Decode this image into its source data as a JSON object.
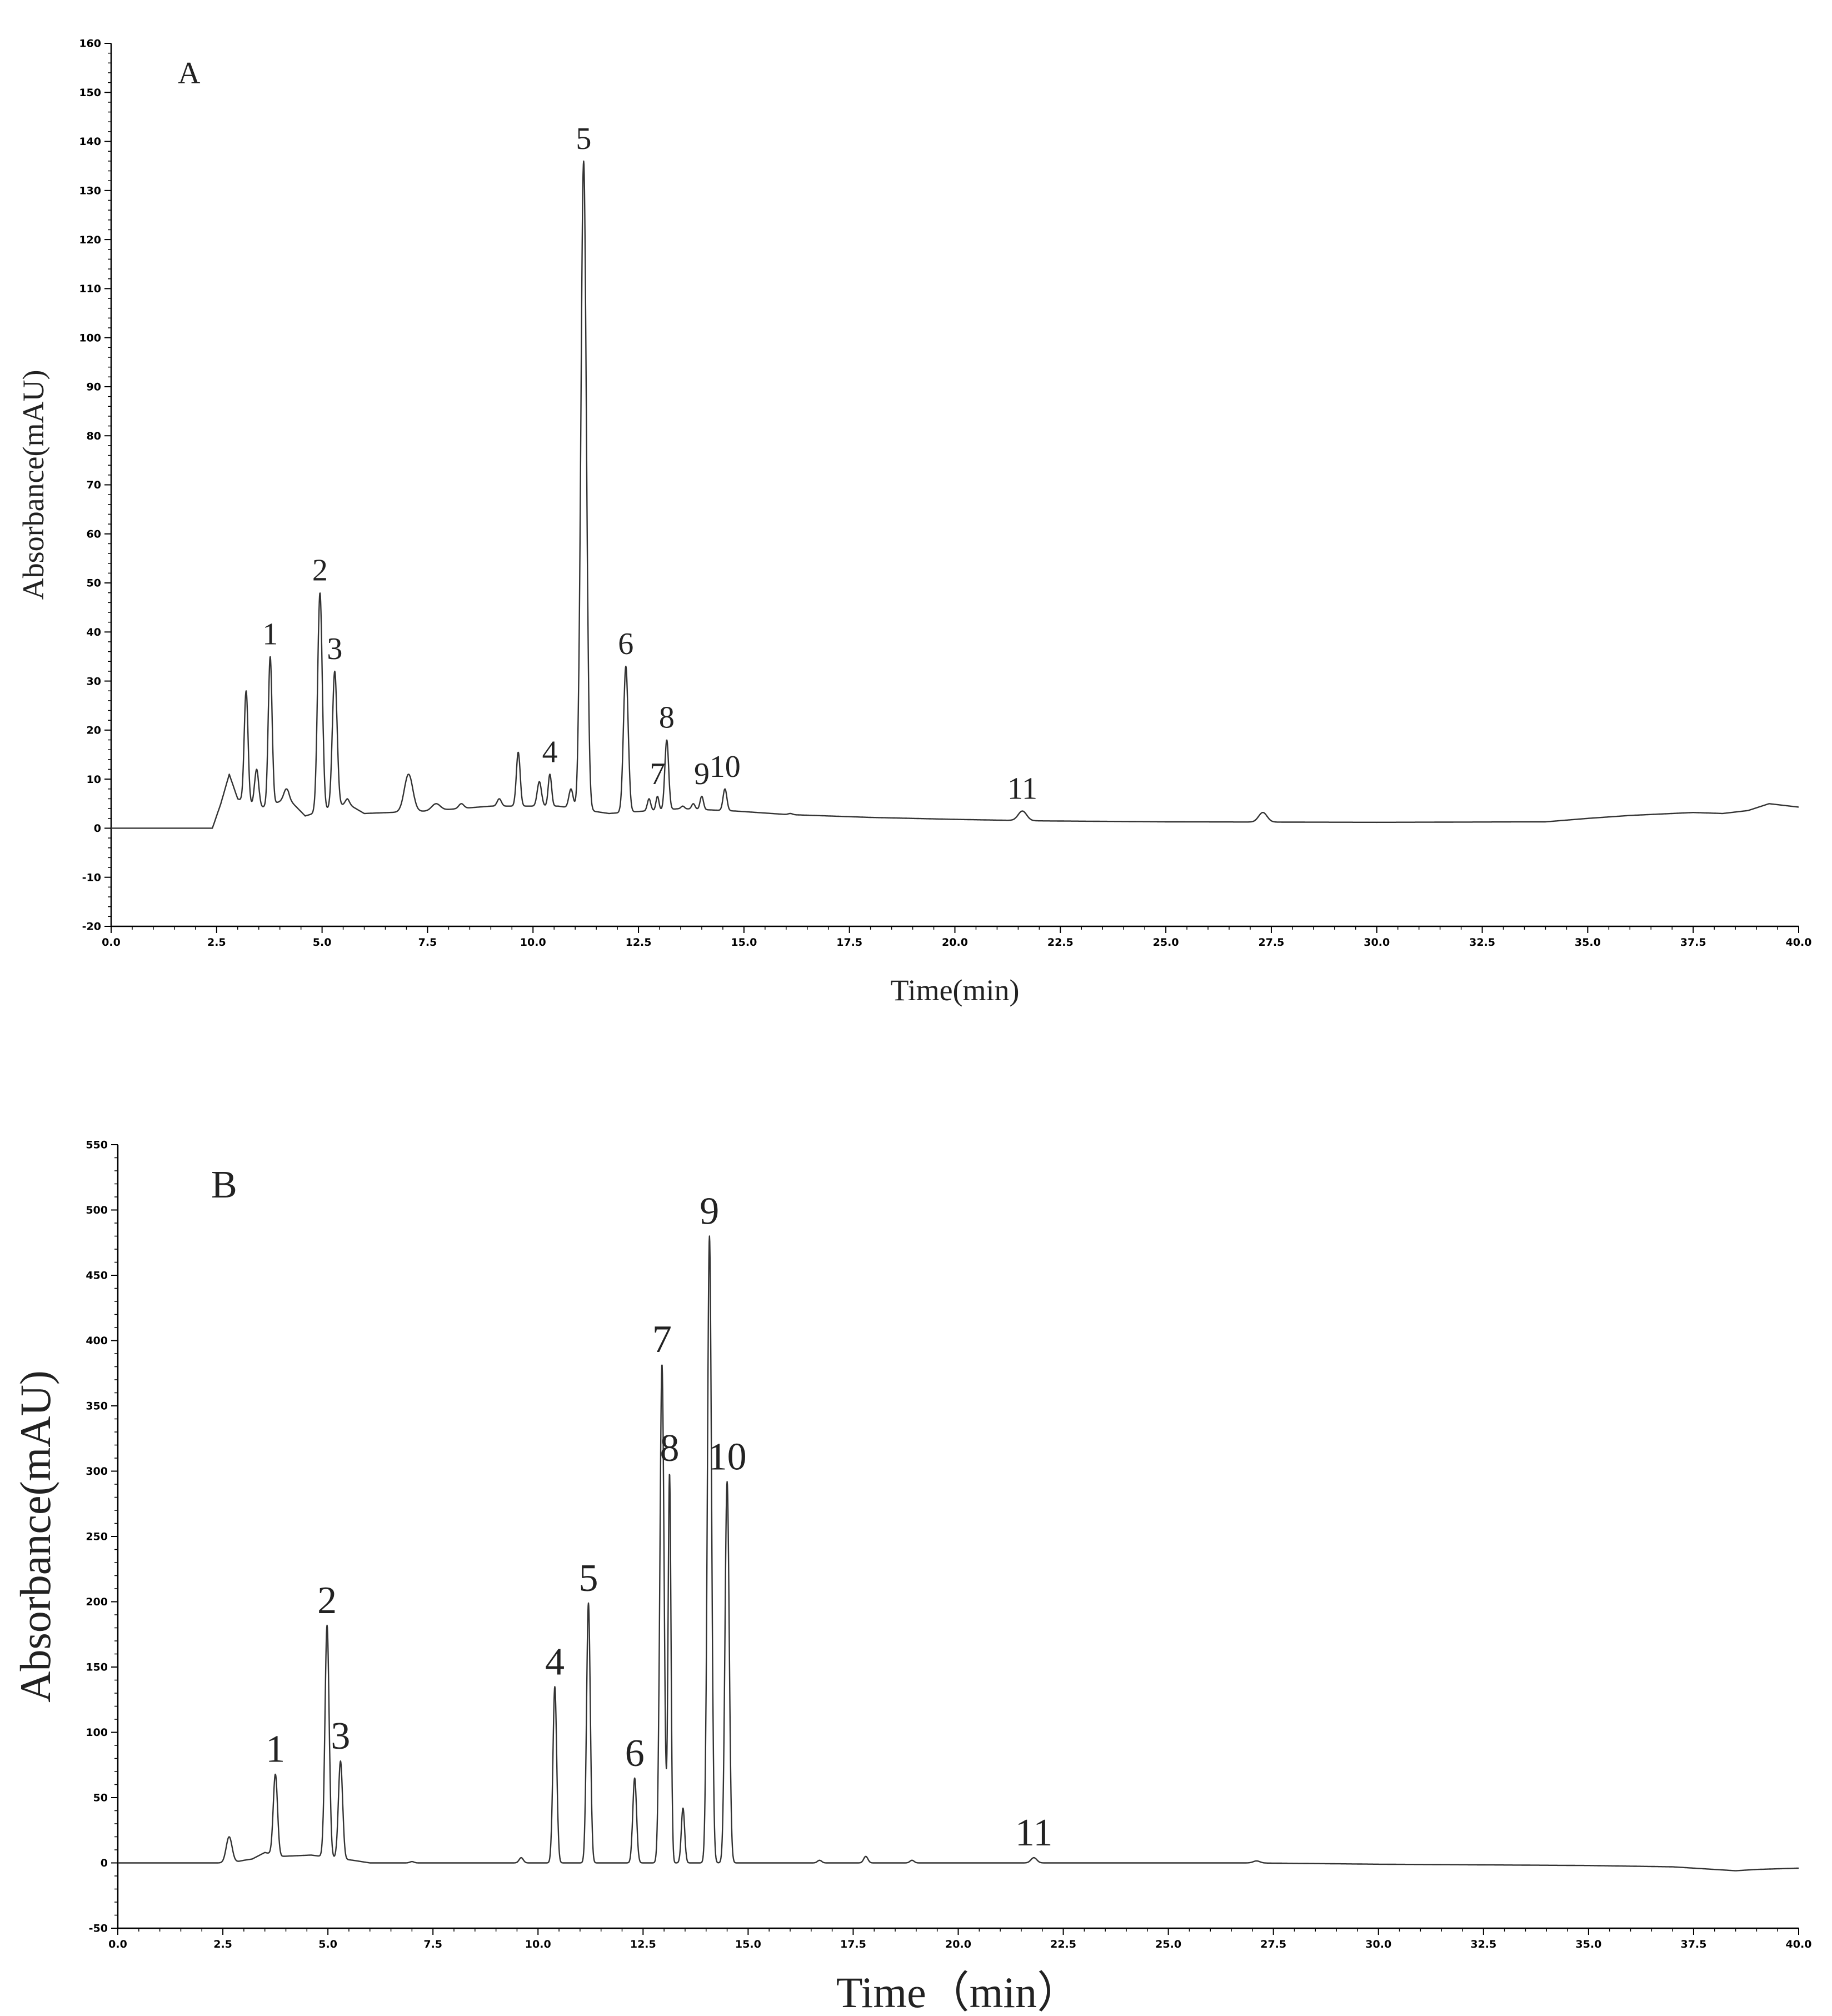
{
  "chart_data": [
    {
      "type": "line",
      "panel_label": "A",
      "xlabel": "Time(min)",
      "ylabel": "Absorbance(mAU)",
      "xlim": [
        0,
        40
      ],
      "ylim": [
        -20,
        160
      ],
      "xticks": [
        "0.0",
        "2.5",
        "5.0",
        "7.5",
        "10.0",
        "12.5",
        "15.0",
        "17.5",
        "20.0",
        "22.5",
        "25.0",
        "27.5",
        "30.0",
        "32.5",
        "35.0",
        "37.5",
        "40.0"
      ],
      "yticks": [
        "-20",
        "-10",
        "0",
        "10",
        "20",
        "30",
        "40",
        "50",
        "60",
        "70",
        "80",
        "90",
        "100",
        "110",
        "120",
        "130",
        "140",
        "150",
        "160"
      ],
      "baseline": [
        [
          0,
          0
        ],
        [
          2.4,
          0
        ],
        [
          2.6,
          5
        ],
        [
          2.8,
          11
        ],
        [
          3.0,
          6
        ],
        [
          3.5,
          4
        ],
        [
          4.2,
          6
        ],
        [
          4.6,
          2.5
        ],
        [
          5.6,
          5
        ],
        [
          6.0,
          3
        ],
        [
          7.5,
          3.5
        ],
        [
          9.0,
          4.5
        ],
        [
          10.6,
          4.5
        ],
        [
          11.8,
          3
        ],
        [
          13.5,
          4
        ],
        [
          14.8,
          3.5
        ],
        [
          16,
          2.8
        ],
        [
          18,
          2.2
        ],
        [
          20,
          1.8
        ],
        [
          22,
          1.5
        ],
        [
          25,
          1.3
        ],
        [
          30,
          1.2
        ],
        [
          34,
          1.3
        ],
        [
          35,
          2
        ],
        [
          36,
          2.6
        ],
        [
          37.5,
          3.2
        ],
        [
          38.2,
          3.0
        ],
        [
          38.8,
          3.6
        ],
        [
          39.3,
          5
        ],
        [
          39.7,
          4.6
        ],
        [
          40,
          4.3
        ]
      ],
      "peaks": [
        {
          "x": 3.2,
          "y": 28,
          "w": 0.045
        },
        {
          "x": 3.45,
          "y": 12,
          "w": 0.05
        },
        {
          "x": 3.77,
          "y": 35,
          "w": 0.045
        },
        {
          "x": 4.15,
          "y": 8,
          "w": 0.06
        },
        {
          "x": 4.95,
          "y": 48,
          "w": 0.055
        },
        {
          "x": 5.3,
          "y": 32,
          "w": 0.055
        },
        {
          "x": 5.6,
          "y": 6,
          "w": 0.05
        },
        {
          "x": 7.05,
          "y": 11,
          "w": 0.1
        },
        {
          "x": 7.7,
          "y": 5,
          "w": 0.1
        },
        {
          "x": 8.3,
          "y": 5,
          "w": 0.06
        },
        {
          "x": 9.2,
          "y": 6,
          "w": 0.05
        },
        {
          "x": 9.65,
          "y": 15.5,
          "w": 0.045
        },
        {
          "x": 10.15,
          "y": 9.5,
          "w": 0.05
        },
        {
          "x": 10.4,
          "y": 11,
          "w": 0.04
        },
        {
          "x": 10.9,
          "y": 8,
          "w": 0.05
        },
        {
          "x": 11.2,
          "y": 136,
          "w": 0.065
        },
        {
          "x": 12.2,
          "y": 33,
          "w": 0.055
        },
        {
          "x": 12.75,
          "y": 6,
          "w": 0.04
        },
        {
          "x": 12.95,
          "y": 6.5,
          "w": 0.035
        },
        {
          "x": 13.17,
          "y": 18,
          "w": 0.045
        },
        {
          "x": 13.55,
          "y": 4.5,
          "w": 0.04
        },
        {
          "x": 13.8,
          "y": 5,
          "w": 0.04
        },
        {
          "x": 14.0,
          "y": 6.5,
          "w": 0.04
        },
        {
          "x": 14.55,
          "y": 8,
          "w": 0.045
        },
        {
          "x": 16.1,
          "y": 3,
          "w": 0.05
        },
        {
          "x": 21.6,
          "y": 3.5,
          "w": 0.1
        },
        {
          "x": 27.3,
          "y": 3.2,
          "w": 0.1
        }
      ],
      "peak_labels": [
        {
          "text": "1",
          "x": 3.77,
          "y": 35
        },
        {
          "text": "2",
          "x": 4.95,
          "y": 48
        },
        {
          "text": "3",
          "x": 5.3,
          "y": 32
        },
        {
          "text": "4",
          "x": 10.4,
          "y": 11
        },
        {
          "text": "5",
          "x": 11.2,
          "y": 136
        },
        {
          "text": "6",
          "x": 12.2,
          "y": 33
        },
        {
          "text": "7",
          "x": 12.95,
          "y": 6.5
        },
        {
          "text": "8",
          "x": 13.17,
          "y": 18
        },
        {
          "text": "9",
          "x": 14.0,
          "y": 6.5
        },
        {
          "text": "10",
          "x": 14.55,
          "y": 8
        },
        {
          "text": "11",
          "x": 21.6,
          "y": 3.5
        }
      ]
    },
    {
      "type": "line",
      "panel_label": "B",
      "xlabel": "Time（min）",
      "ylabel": "Absorbance(mAU)",
      "xlim": [
        0,
        40
      ],
      "ylim": [
        -50,
        550
      ],
      "xticks": [
        "0.0",
        "2.5",
        "5.0",
        "7.5",
        "10.0",
        "12.5",
        "15.0",
        "17.5",
        "20.0",
        "22.5",
        "25.0",
        "27.5",
        "30.0",
        "32.5",
        "35.0",
        "37.5",
        "40.0"
      ],
      "yticks": [
        "-50",
        "0",
        "50",
        "100",
        "150",
        "200",
        "250",
        "300",
        "350",
        "400",
        "450",
        "500",
        "550"
      ],
      "baseline": [
        [
          0,
          0
        ],
        [
          2.5,
          0
        ],
        [
          2.7,
          0
        ],
        [
          3.0,
          2
        ],
        [
          3.2,
          3
        ],
        [
          3.5,
          8
        ],
        [
          3.9,
          5
        ],
        [
          4.6,
          6
        ],
        [
          5.6,
          2
        ],
        [
          6,
          0
        ],
        [
          20,
          0
        ],
        [
          27,
          0
        ],
        [
          30,
          -1
        ],
        [
          35,
          -2
        ],
        [
          37,
          -3
        ],
        [
          38,
          -5
        ],
        [
          38.5,
          -6
        ],
        [
          39,
          -5
        ],
        [
          40,
          -4
        ]
      ],
      "peaks": [
        {
          "x": 2.65,
          "y": 20,
          "w": 0.07
        },
        {
          "x": 3.75,
          "y": 68,
          "w": 0.05
        },
        {
          "x": 4.98,
          "y": 182,
          "w": 0.05
        },
        {
          "x": 5.3,
          "y": 78,
          "w": 0.05
        },
        {
          "x": 7.0,
          "y": 1,
          "w": 0.05
        },
        {
          "x": 9.6,
          "y": 4,
          "w": 0.05
        },
        {
          "x": 10.4,
          "y": 135,
          "w": 0.045
        },
        {
          "x": 11.2,
          "y": 199,
          "w": 0.045
        },
        {
          "x": 12.3,
          "y": 65,
          "w": 0.045
        },
        {
          "x": 12.95,
          "y": 382,
          "w": 0.05
        },
        {
          "x": 13.13,
          "y": 298,
          "w": 0.035
        },
        {
          "x": 13.45,
          "y": 42,
          "w": 0.04
        },
        {
          "x": 14.08,
          "y": 480,
          "w": 0.05
        },
        {
          "x": 14.5,
          "y": 292,
          "w": 0.05
        },
        {
          "x": 16.7,
          "y": 2,
          "w": 0.05
        },
        {
          "x": 17.8,
          "y": 5,
          "w": 0.05
        },
        {
          "x": 18.9,
          "y": 2,
          "w": 0.05
        },
        {
          "x": 21.8,
          "y": 4,
          "w": 0.07
        },
        {
          "x": 27.1,
          "y": 1.5,
          "w": 0.08
        }
      ],
      "peak_labels": [
        {
          "text": "1",
          "x": 3.75,
          "y": 68
        },
        {
          "text": "2",
          "x": 4.98,
          "y": 182
        },
        {
          "text": "3",
          "x": 5.3,
          "y": 78
        },
        {
          "text": "4",
          "x": 10.4,
          "y": 135
        },
        {
          "text": "5",
          "x": 11.2,
          "y": 199
        },
        {
          "text": "6",
          "x": 12.3,
          "y": 65
        },
        {
          "text": "7",
          "x": 12.95,
          "y": 382
        },
        {
          "text": "8",
          "x": 13.13,
          "y": 298
        },
        {
          "text": "9",
          "x": 14.08,
          "y": 480
        },
        {
          "text": "10",
          "x": 14.5,
          "y": 292
        },
        {
          "text": "11",
          "x": 21.8,
          "y": 4
        }
      ]
    }
  ]
}
